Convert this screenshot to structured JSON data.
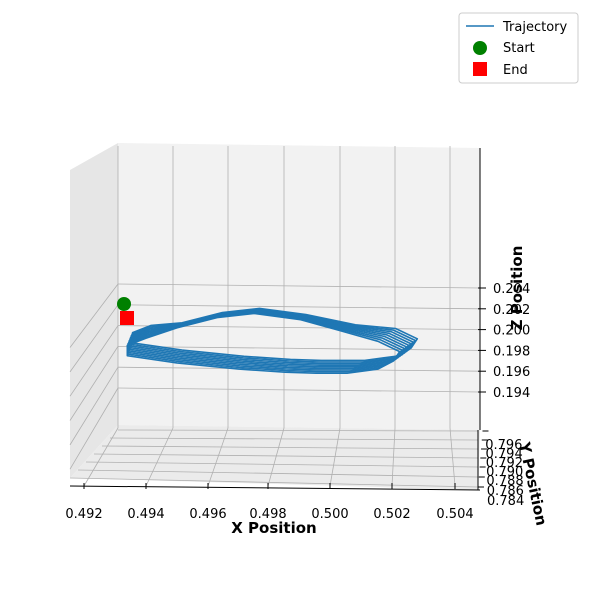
{
  "chart_data": {
    "type": "line",
    "projection": "3d",
    "xlabel": "X Position",
    "ylabel": "Y Position",
    "zlabel": "Z Position",
    "xlim": [
      0.4915,
      0.5045
    ],
    "ylim": [
      0.7835,
      0.7965
    ],
    "zlim": [
      0.1925,
      0.2055
    ],
    "x_ticks": [
      "0.492",
      "0.494",
      "0.496",
      "0.498",
      "0.500",
      "0.502",
      "0.504"
    ],
    "y_ticks": [
      "0.784",
      "0.786",
      "0.788",
      "0.790",
      "0.792",
      "0.794",
      "0.796"
    ],
    "z_ticks": [
      "0.194",
      "0.196",
      "0.198",
      "0.200",
      "0.202",
      "0.204"
    ],
    "grid": true,
    "legend_position": "top-right",
    "series": [
      {
        "name": "Trajectory",
        "kind": "line",
        "color": "#1f77b4",
        "loops": 9,
        "path_xz": [
          [
            0.4934,
            0.1983
          ],
          [
            0.495,
            0.1976
          ],
          [
            0.497,
            0.197
          ],
          [
            0.4985,
            0.1967
          ],
          [
            0.4995,
            0.1966
          ],
          [
            0.5005,
            0.1966
          ],
          [
            0.5015,
            0.197
          ],
          [
            0.502,
            0.1978
          ],
          [
            0.5022,
            0.1987
          ],
          [
            0.5015,
            0.1997
          ],
          [
            0.5002,
            0.2008
          ],
          [
            0.499,
            0.2018
          ],
          [
            0.4975,
            0.2024
          ],
          [
            0.4963,
            0.202
          ],
          [
            0.495,
            0.201
          ],
          [
            0.494,
            0.2
          ],
          [
            0.4934,
            0.1993
          ]
        ]
      },
      {
        "name": "Start",
        "kind": "scatter",
        "marker": "circle",
        "color": "#008000",
        "x": 0.4933,
        "z": 0.199
      },
      {
        "name": "End",
        "kind": "scatter",
        "marker": "square",
        "color": "#ff0000",
        "x": 0.4934,
        "z": 0.1983
      }
    ]
  }
}
